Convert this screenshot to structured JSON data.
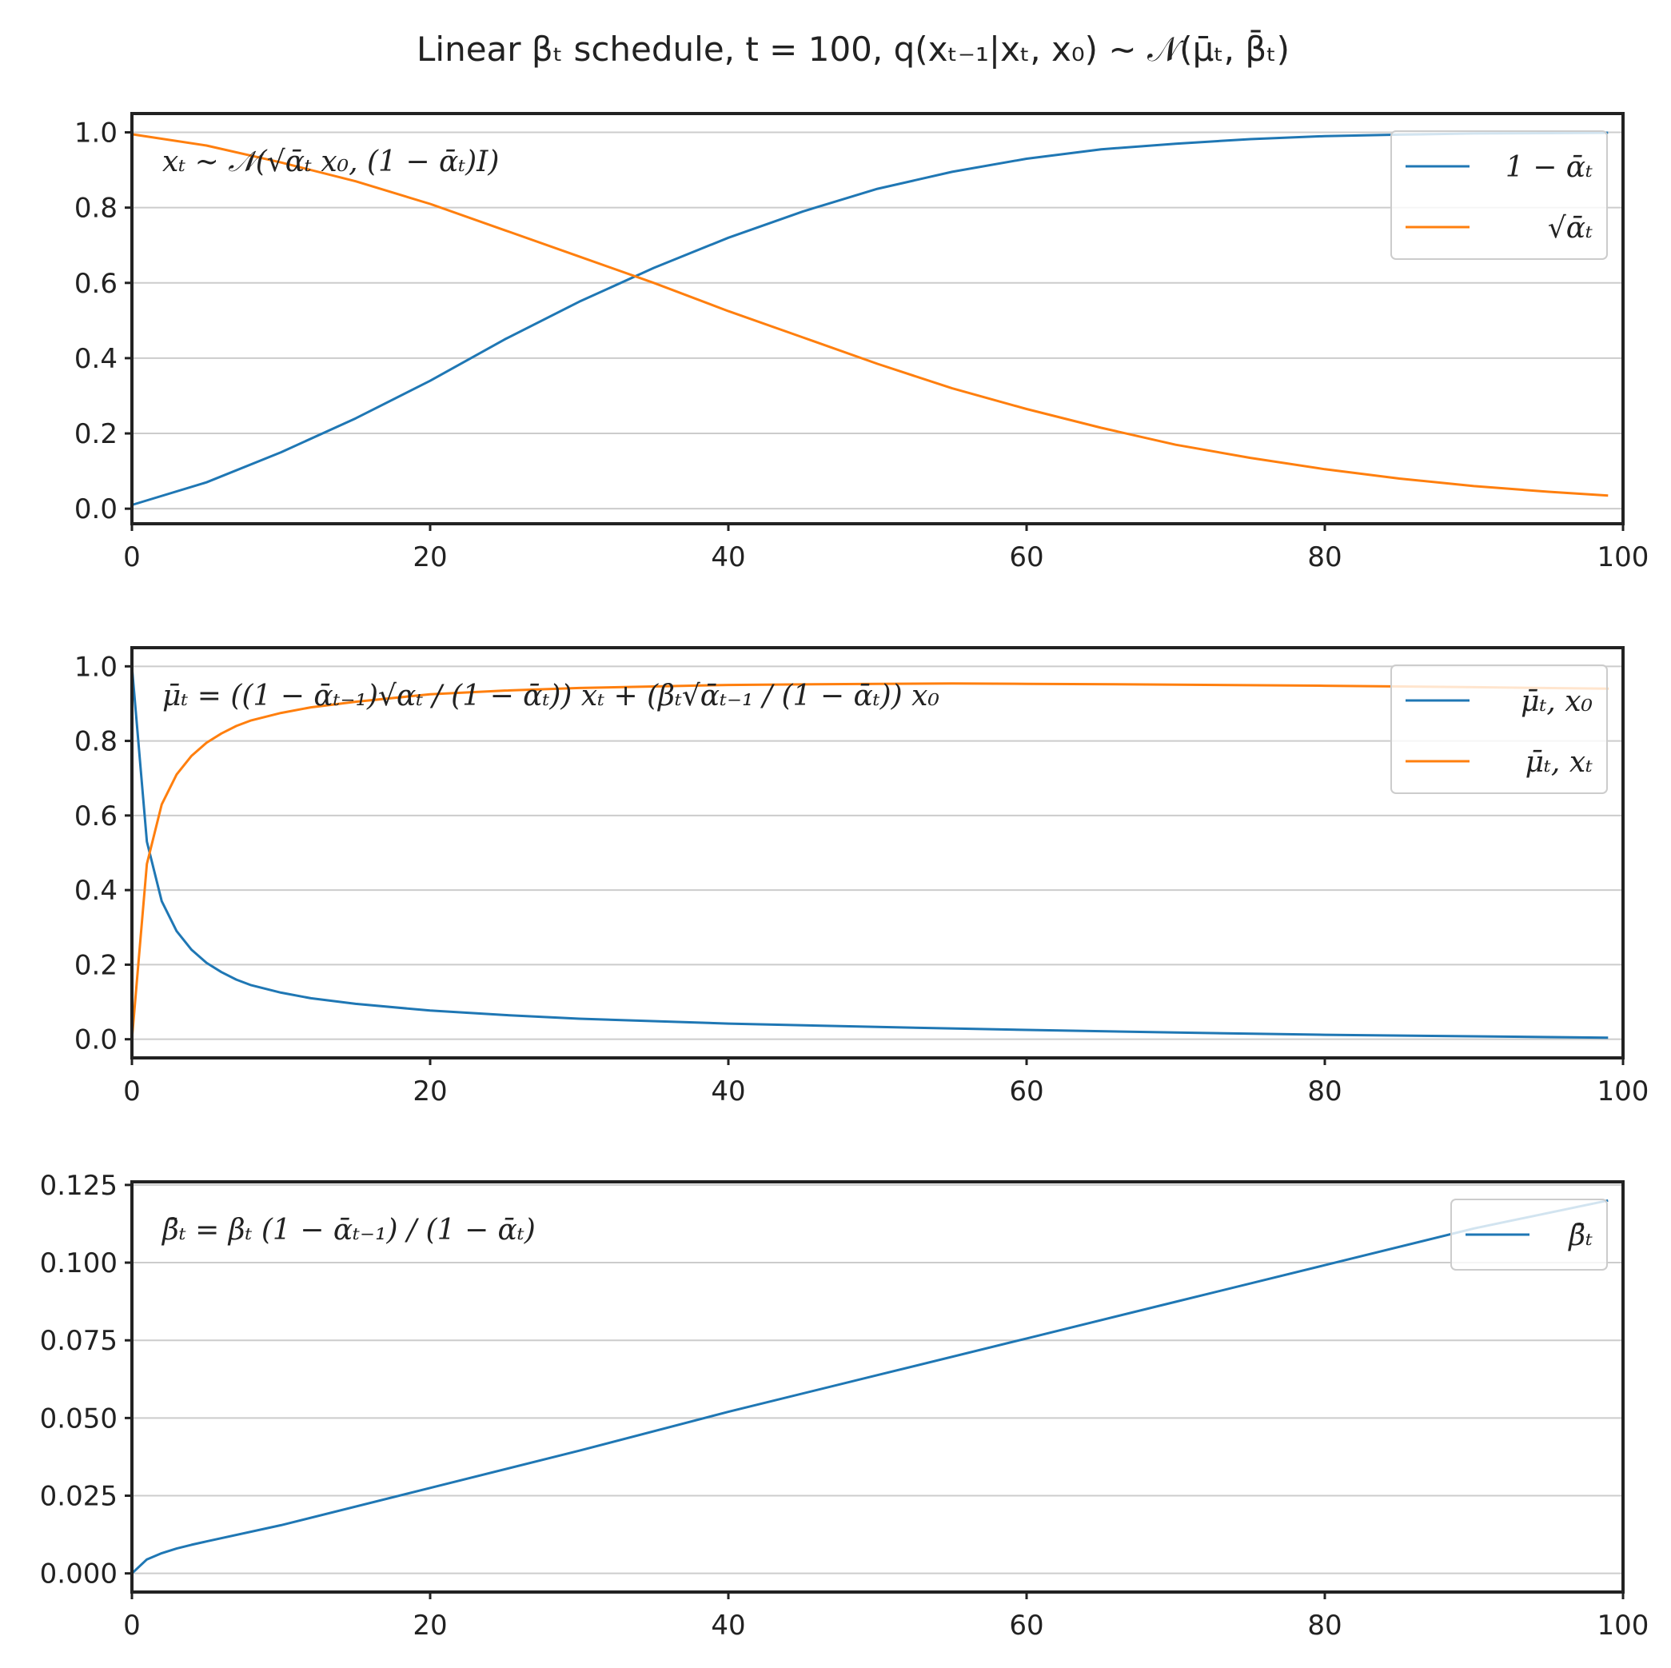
{
  "figure": {
    "title": "Linear βₜ schedule, t = 100, q(xₜ₋₁|xₜ, x₀) ~ 𝒩(μ̄ₜ, β̄ₜ)"
  },
  "colors": {
    "blue": "#1f77b4",
    "orange": "#ff7f0e",
    "grid": "#cccccc",
    "spine": "#222222",
    "text": "#222222"
  },
  "chart_data": [
    {
      "type": "line",
      "annotation": "xₜ ~ 𝒩(√ᾱₜ x₀, (1 − ᾱₜ)I)",
      "xlim": [
        0,
        100
      ],
      "ylim": [
        -0.04,
        1.05
      ],
      "xticks": [
        0,
        20,
        40,
        60,
        80,
        100
      ],
      "yticks": [
        0.0,
        0.2,
        0.4,
        0.6,
        0.8,
        1.0
      ],
      "ytick_labels": [
        "0.0",
        "0.2",
        "0.4",
        "0.6",
        "0.8",
        "1.0"
      ],
      "grid": "horizontal",
      "legend_position": "top-right",
      "series": [
        {
          "name": "1 − ᾱₜ",
          "color": "blue",
          "x": [
            0,
            5,
            10,
            15,
            20,
            25,
            30,
            35,
            40,
            45,
            50,
            55,
            60,
            65,
            70,
            75,
            80,
            85,
            90,
            95,
            99
          ],
          "y": [
            0.01,
            0.07,
            0.15,
            0.24,
            0.34,
            0.45,
            0.55,
            0.64,
            0.72,
            0.79,
            0.85,
            0.895,
            0.93,
            0.955,
            0.97,
            0.982,
            0.99,
            0.994,
            0.997,
            0.998,
            0.999
          ]
        },
        {
          "name": "√ᾱₜ",
          "color": "orange",
          "x": [
            0,
            5,
            10,
            15,
            20,
            25,
            30,
            35,
            40,
            45,
            50,
            55,
            60,
            65,
            70,
            75,
            80,
            85,
            90,
            95,
            99
          ],
          "y": [
            0.995,
            0.965,
            0.92,
            0.87,
            0.81,
            0.74,
            0.67,
            0.6,
            0.525,
            0.455,
            0.385,
            0.32,
            0.265,
            0.215,
            0.17,
            0.135,
            0.105,
            0.08,
            0.06,
            0.045,
            0.035
          ]
        }
      ]
    },
    {
      "type": "line",
      "annotation": "μ̄ₜ = ((1 − ᾱₜ₋₁)√αₜ / (1 − ᾱₜ)) xₜ + (βₜ√ᾱₜ₋₁ / (1 − ᾱₜ)) x₀",
      "xlim": [
        0,
        100
      ],
      "ylim": [
        -0.05,
        1.05
      ],
      "xticks": [
        0,
        20,
        40,
        60,
        80,
        100
      ],
      "yticks": [
        0.0,
        0.2,
        0.4,
        0.6,
        0.8,
        1.0
      ],
      "ytick_labels": [
        "0.0",
        "0.2",
        "0.4",
        "0.6",
        "0.8",
        "1.0"
      ],
      "grid": "horizontal",
      "legend_position": "top-right",
      "series": [
        {
          "name": "μ̄ₜ, x₀",
          "color": "blue",
          "x": [
            0,
            1,
            2,
            3,
            4,
            5,
            6,
            7,
            8,
            10,
            12,
            15,
            20,
            25,
            30,
            40,
            50,
            60,
            70,
            80,
            90,
            99
          ],
          "y": [
            1.0,
            0.53,
            0.37,
            0.29,
            0.24,
            0.205,
            0.18,
            0.16,
            0.145,
            0.125,
            0.11,
            0.095,
            0.077,
            0.065,
            0.055,
            0.042,
            0.033,
            0.025,
            0.018,
            0.012,
            0.008,
            0.004
          ]
        },
        {
          "name": "μ̄ₜ, xₜ",
          "color": "orange",
          "x": [
            0,
            1,
            2,
            3,
            4,
            5,
            6,
            7,
            8,
            10,
            12,
            15,
            20,
            25,
            30,
            40,
            50,
            55,
            60,
            70,
            80,
            90,
            99
          ],
          "y": [
            0.0,
            0.47,
            0.63,
            0.71,
            0.76,
            0.795,
            0.82,
            0.84,
            0.855,
            0.875,
            0.89,
            0.905,
            0.925,
            0.935,
            0.942,
            0.95,
            0.953,
            0.954,
            0.953,
            0.951,
            0.948,
            0.944,
            0.94
          ]
        }
      ]
    },
    {
      "type": "line",
      "annotation": "β̄ₜ = βₜ (1 − ᾱₜ₋₁) / (1 − ᾱₜ)",
      "xlim": [
        0,
        100
      ],
      "ylim": [
        -0.006,
        0.126
      ],
      "xticks": [
        0,
        20,
        40,
        60,
        80,
        100
      ],
      "yticks": [
        0.0,
        0.025,
        0.05,
        0.075,
        0.1,
        0.125
      ],
      "ytick_labels": [
        "0.000",
        "0.025",
        "0.050",
        "0.075",
        "0.100",
        "0.125"
      ],
      "grid": "horizontal",
      "legend_position": "top-right",
      "series": [
        {
          "name": "β̄ₜ",
          "color": "blue",
          "x": [
            0,
            1,
            2,
            3,
            4,
            5,
            10,
            20,
            30,
            40,
            50,
            60,
            70,
            80,
            90,
            99
          ],
          "y": [
            0.0,
            0.0045,
            0.0065,
            0.008,
            0.0092,
            0.0103,
            0.0155,
            0.0275,
            0.0395,
            0.052,
            0.0638,
            0.0756,
            0.0874,
            0.0992,
            0.111,
            0.12
          ]
        }
      ]
    }
  ]
}
